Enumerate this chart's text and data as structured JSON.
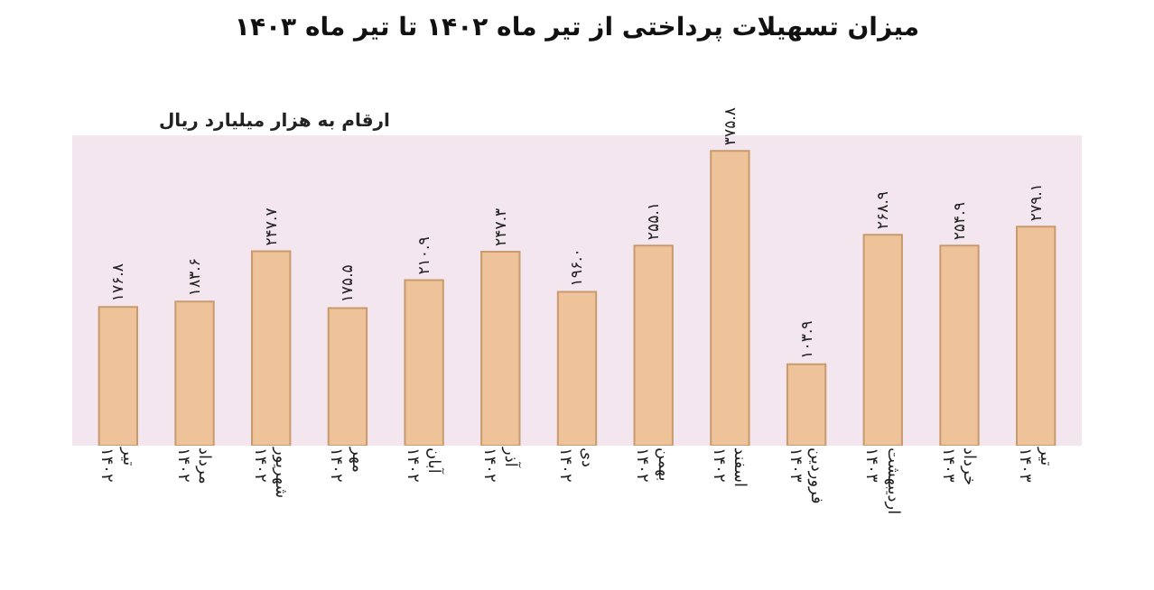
{
  "chart_data": {
    "type": "bar",
    "title": "میزان تسهیلات پرداختی از تیر ماه ۱۴۰۲ تا تیر ماه ۱۴۰۳",
    "subtitle": "ارقام به هزار میلیارد ریال",
    "categories": [
      "تیر ۱۴۰۲",
      "مرداد ۱۴۰۲",
      "شهریور ۱۴۰۲",
      "مهر ۱۴۰۲",
      "آبان ۱۴۰۲",
      "آذر ۱۴۰۲",
      "دی ۱۴۰۲",
      "بهمن ۱۴۰۲",
      "اسفند ۱۴۰۲",
      "فروردین ۱۴۰۳",
      "اردیبهشت ۱۴۰۳",
      "خرداد ۱۴۰۳",
      "تیر ۱۴۰۳"
    ],
    "values": [
      176.8,
      183.6,
      247.7,
      175.5,
      210.9,
      247.3,
      196.0,
      255.1,
      375.8,
      103.9,
      268.9,
      254.9,
      279.1
    ],
    "value_labels": [
      "۱۷۶.۸",
      "۱۸۳.۶",
      "۲۴۷.۷",
      "۱۷۵.۵",
      "۲۱۰.۹",
      "۲۴۷.۳",
      "۱۹۶.۰",
      "۲۵۵.۱",
      "۳۷۵.۸",
      "۱۰۳.۹",
      "۲۶۸.۹",
      "۲۵۴.۹",
      "۲۷۹.۱"
    ],
    "color": "#eec39a",
    "grid": false,
    "legend": false
  }
}
